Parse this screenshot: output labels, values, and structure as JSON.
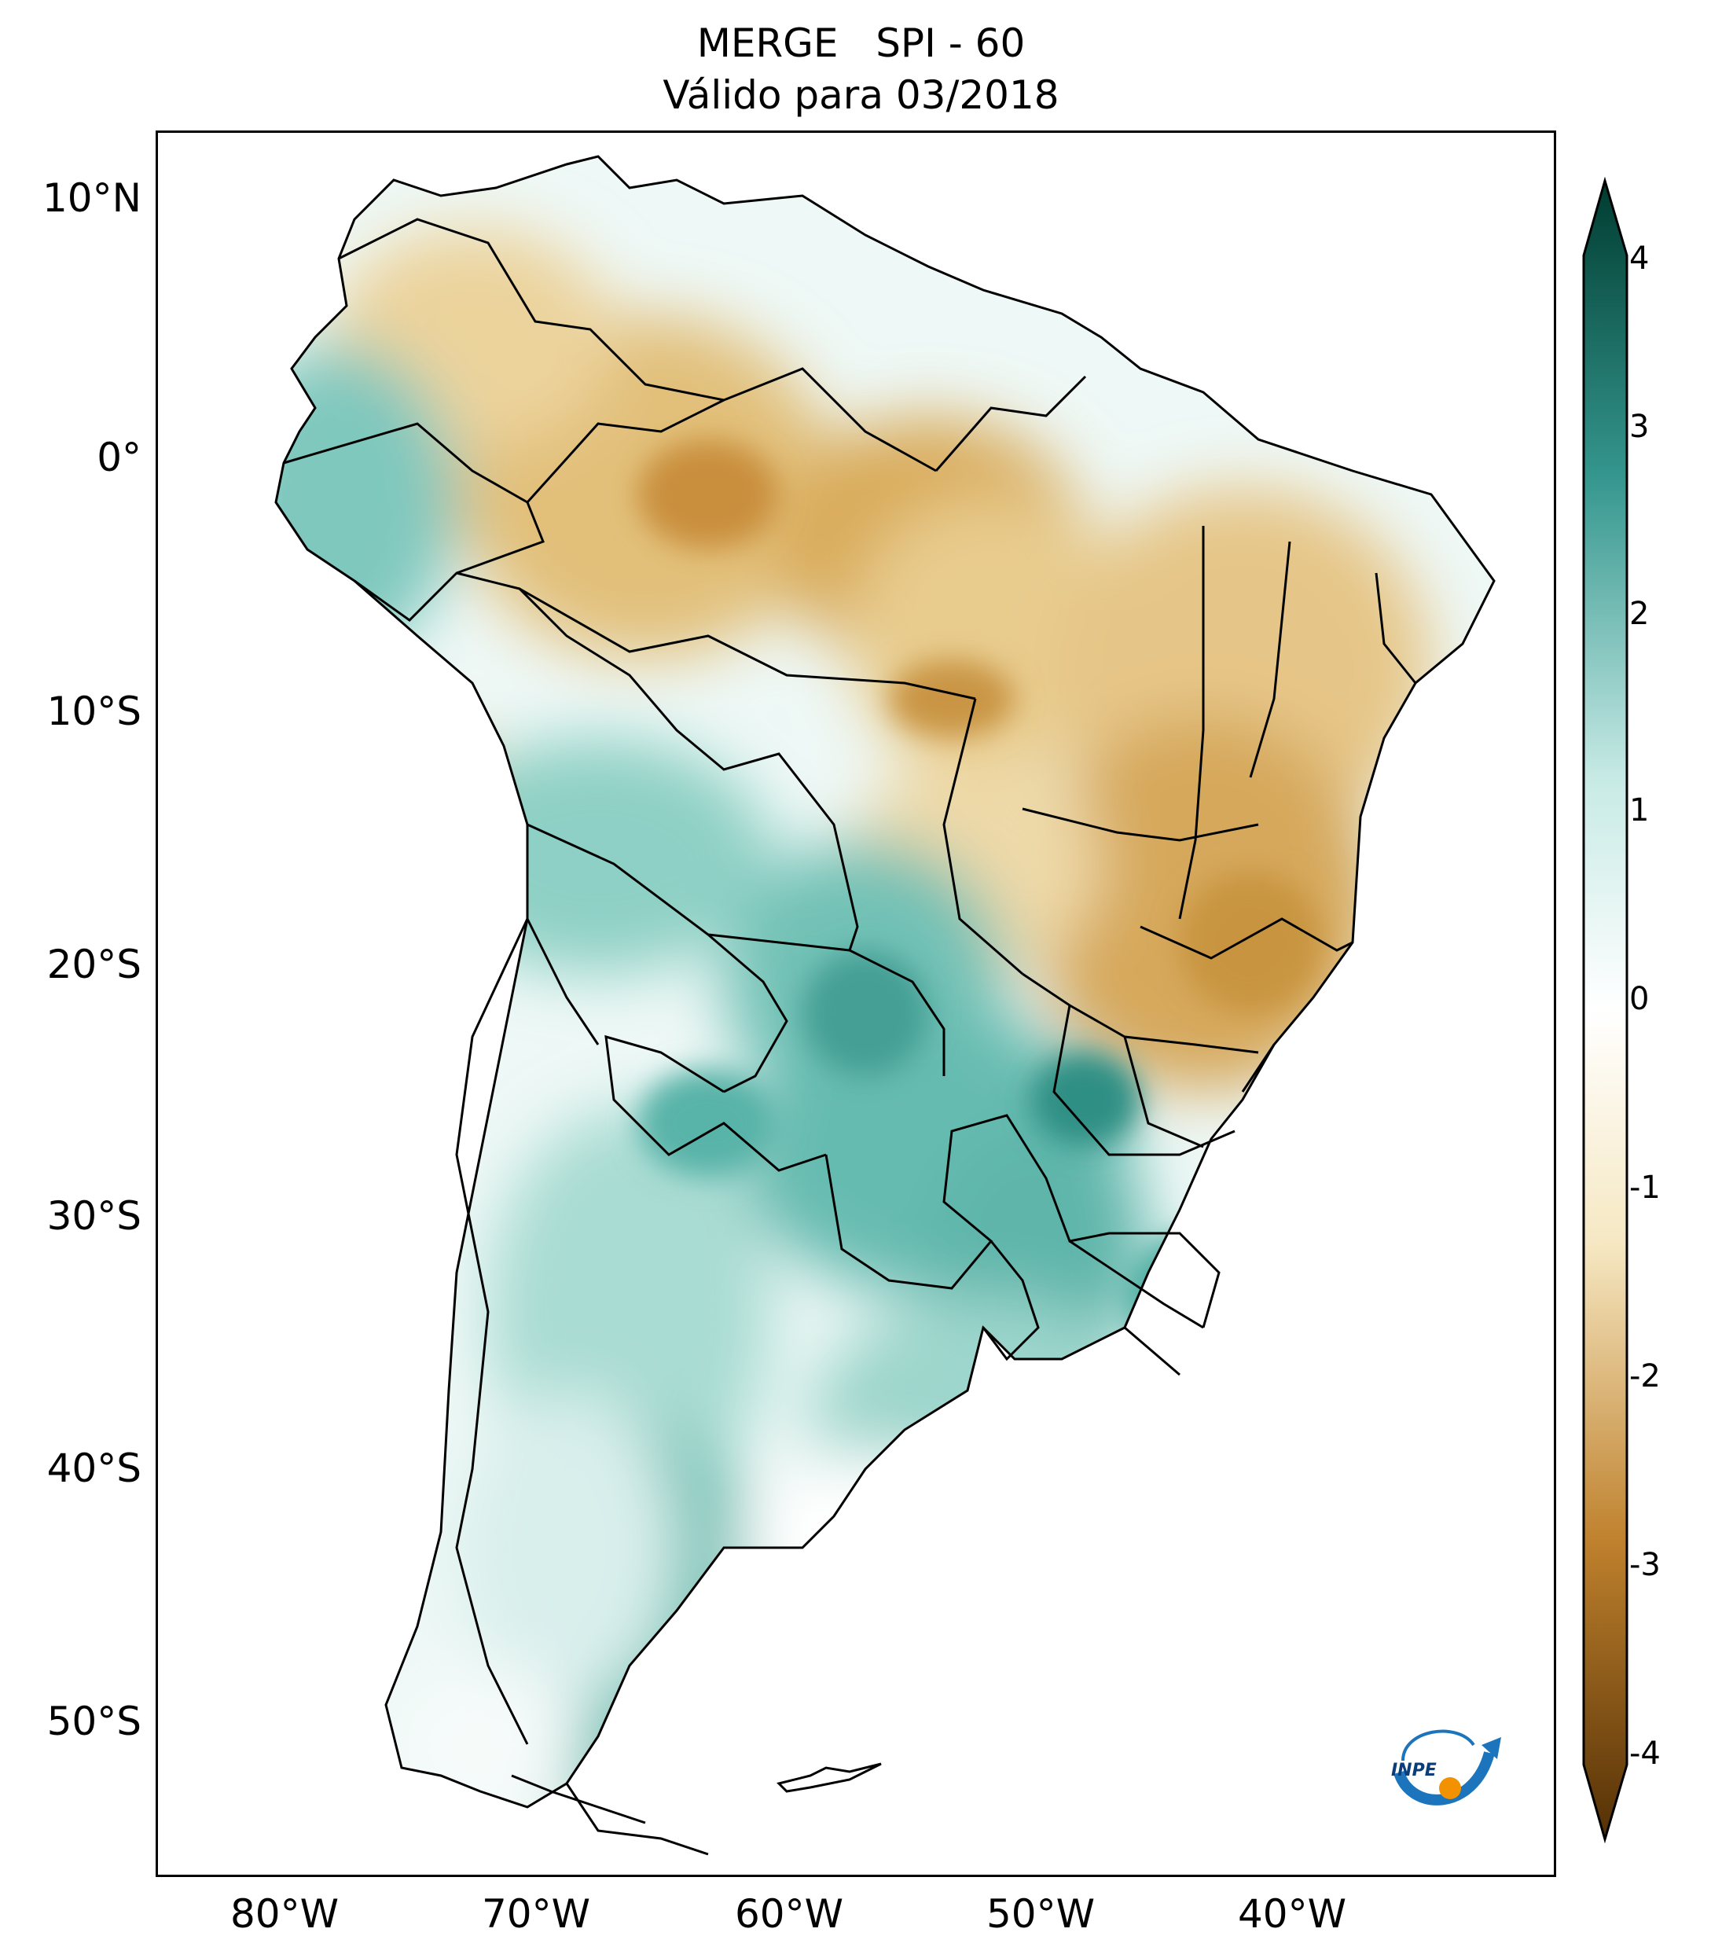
{
  "title": {
    "line1": "MERGE   SPI - 60",
    "line2": "Válido para 03/2018"
  },
  "axes": {
    "lat_ticks": [
      "10°N",
      "0°",
      "10°S",
      "20°S",
      "30°S",
      "40°S",
      "50°S"
    ],
    "lon_ticks": [
      "80°W",
      "70°W",
      "60°W",
      "50°W",
      "40°W"
    ]
  },
  "colorbar": {
    "ticks": [
      "4",
      "3",
      "2",
      "1",
      "0",
      "-1",
      "-2",
      "-3",
      "-4"
    ],
    "min": -4,
    "max": 4,
    "colors": {
      "deep_wet": "#003c30",
      "wet": "#35978f",
      "light_wet": "#c7eae5",
      "neutral": "#ffffff",
      "light_dry": "#f6e8c3",
      "dry": "#bf812d",
      "deep_dry": "#543005"
    }
  },
  "logo": {
    "text": "INPE",
    "icon": "inpe-logo-icon"
  }
}
